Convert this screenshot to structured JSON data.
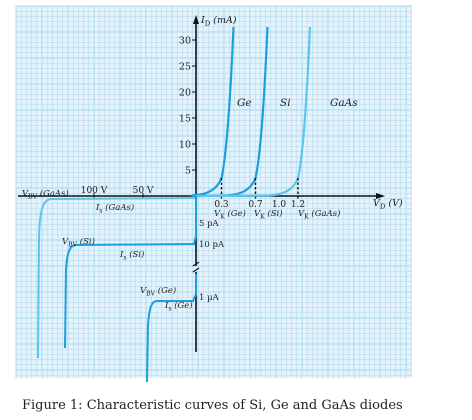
{
  "chart_data": {
    "type": "line",
    "title": "",
    "y_axis_label": "I_D (mA)",
    "x_axis_label": "V_D (V)",
    "y_ticks": [
      5,
      10,
      15,
      20,
      25,
      30
    ],
    "x_ticks_negative": [
      "100 V",
      "50 V"
    ],
    "x_ticks_positive": [
      "0.3",
      "0.7",
      "1.0",
      "1.2"
    ],
    "knee_labels": [
      "V_K (Ge)",
      "V_K (Si)",
      "V_K (GaAs)"
    ],
    "reverse_current_labels": [
      "5 pA",
      "10 pA",
      "1 µA"
    ],
    "saturation_labels": [
      "I_s (GaAs)",
      "I_s (Si)",
      "I_s (Ge)"
    ],
    "breakdown_labels": [
      "V_BV (GaAs)",
      "V_BV (Si)",
      "V_BV (Ge)"
    ],
    "grid": true,
    "series": [
      {
        "name": "Ge",
        "knee_voltage": 0.3,
        "color": "#1e9fdc"
      },
      {
        "name": "Si",
        "knee_voltage": 0.7,
        "color": "#1e9fdc"
      },
      {
        "name": "GaAs",
        "knee_voltage": 1.2,
        "color": "#5cc5ef"
      }
    ]
  },
  "caption": "Figure 1: Characteristic curves of Si, Ge and GaAs diodes",
  "colors": {
    "grid_bg": "#e4f3fb",
    "grid_line": "#a9d7ef",
    "axis": "#111111"
  }
}
